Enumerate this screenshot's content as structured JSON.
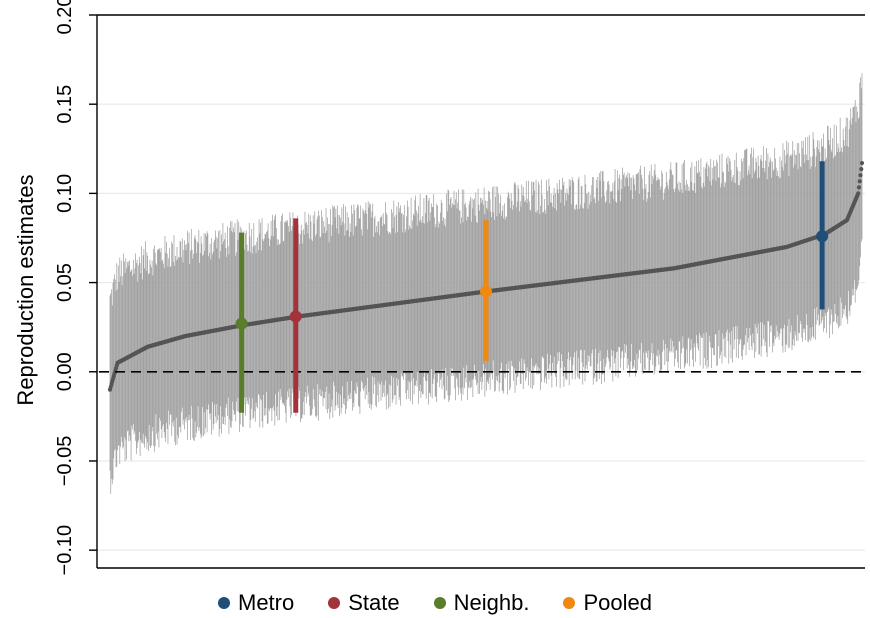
{
  "chart_data": {
    "type": "scatter",
    "subtype": "sorted estimates with confidence intervals (caterpillar plot)",
    "ylabel": "Reproduction estimates",
    "xlabel": "",
    "ylim": [
      -0.11,
      0.2
    ],
    "yticks": [
      {
        "value": -0.1,
        "label": "−0.10"
      },
      {
        "value": -0.05,
        "label": "−0.05"
      },
      {
        "value": 0.0,
        "label": "0.00"
      },
      {
        "value": 0.05,
        "label": "0.05"
      },
      {
        "value": 0.1,
        "label": "0.10"
      },
      {
        "value": 0.15,
        "label": "0.15"
      },
      {
        "value": 0.2,
        "label": "0.20"
      }
    ],
    "grid": true,
    "reference_line": {
      "y": 0.0,
      "style": "dashed"
    },
    "background_estimates": {
      "count": 1000,
      "point_color": "#555555",
      "interval_color": "#a0a0a0",
      "sorted_curve": [
        {
          "rank": 0.0,
          "estimate": -0.01
        },
        {
          "rank": 0.01,
          "estimate": 0.005
        },
        {
          "rank": 0.05,
          "estimate": 0.014
        },
        {
          "rank": 0.1,
          "estimate": 0.02
        },
        {
          "rank": 0.175,
          "estimate": 0.026
        },
        {
          "rank": 0.25,
          "estimate": 0.031
        },
        {
          "rank": 0.5,
          "estimate": 0.045
        },
        {
          "rank": 0.75,
          "estimate": 0.058
        },
        {
          "rank": 0.9,
          "estimate": 0.07
        },
        {
          "rank": 0.95,
          "estimate": 0.077
        },
        {
          "rank": 0.98,
          "estimate": 0.085
        },
        {
          "rank": 0.995,
          "estimate": 0.1
        },
        {
          "rank": 1.0,
          "estimate": 0.117
        }
      ],
      "interval_half_width": 0.05
    },
    "series": [
      {
        "name": "Metro",
        "color": "#1f4e79",
        "rank": 0.947,
        "estimate": 0.076,
        "ci": [
          0.035,
          0.118
        ]
      },
      {
        "name": "State",
        "color": "#a3323a",
        "rank": 0.247,
        "estimate": 0.031,
        "ci": [
          -0.023,
          0.086
        ]
      },
      {
        "name": "Neighb.",
        "color": "#5a7d2a",
        "rank": 0.175,
        "estimate": 0.027,
        "ci": [
          -0.023,
          0.078
        ]
      },
      {
        "name": "Pooled",
        "color": "#ee8a12",
        "rank": 0.5,
        "estimate": 0.045,
        "ci": [
          0.006,
          0.085
        ]
      }
    ],
    "legend": {
      "position": "bottom",
      "order": [
        "Metro",
        "State",
        "Neighb.",
        "Pooled"
      ]
    }
  }
}
